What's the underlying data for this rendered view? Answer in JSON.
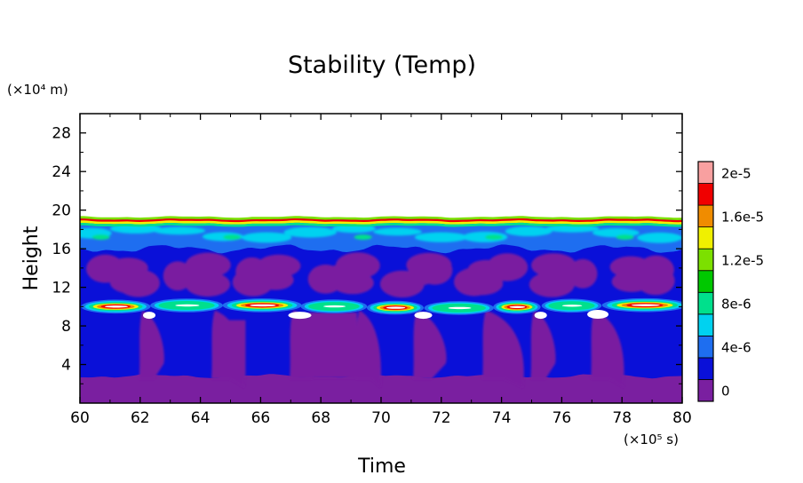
{
  "chart_data": {
    "type": "heatmap",
    "title": "Stability (Temp)",
    "xlabel": "Time",
    "ylabel": "Height",
    "x_unit_label": "(×10⁵ s)",
    "y_unit_label": "(×10⁴ m)",
    "xlim": [
      60,
      80
    ],
    "ylim": [
      0,
      30
    ],
    "x_ticks": [
      "60",
      "62",
      "64",
      "66",
      "68",
      "70",
      "72",
      "74",
      "76",
      "78",
      "80"
    ],
    "y_ticks": [
      "4",
      "8",
      "12",
      "16",
      "20",
      "24",
      "28"
    ],
    "colorbar": {
      "levels": [
        "0",
        "4e-6",
        "8e-6",
        "1.2e-5",
        "1.6e-5",
        "2e-5"
      ],
      "colors": [
        "#7a1fa0",
        "#0a10d8",
        "#1e6ef0",
        "#00d2f0",
        "#00e08c",
        "#00c800",
        "#7ce000",
        "#f0f000",
        "#f08c00",
        "#f00000",
        "#f8a0a0"
      ]
    },
    "bands": [
      {
        "from": 0,
        "to": 2.8,
        "level": "0"
      },
      {
        "from": 2.8,
        "to": 9.4,
        "level": "4e-6"
      },
      {
        "from": 9.4,
        "to": 10.6,
        "level": "1.6e-5"
      },
      {
        "from": 10.6,
        "to": 16.2,
        "level": "0"
      },
      {
        "from": 16.2,
        "to": 18.8,
        "level": "4e-6"
      },
      {
        "from": 18.8,
        "to": 19.3,
        "level": "1.6e-5"
      }
    ],
    "events_x": [
      62.2,
      64.6,
      67.2,
      69.4,
      71.3,
      73.6,
      75.2,
      77.2
    ]
  }
}
